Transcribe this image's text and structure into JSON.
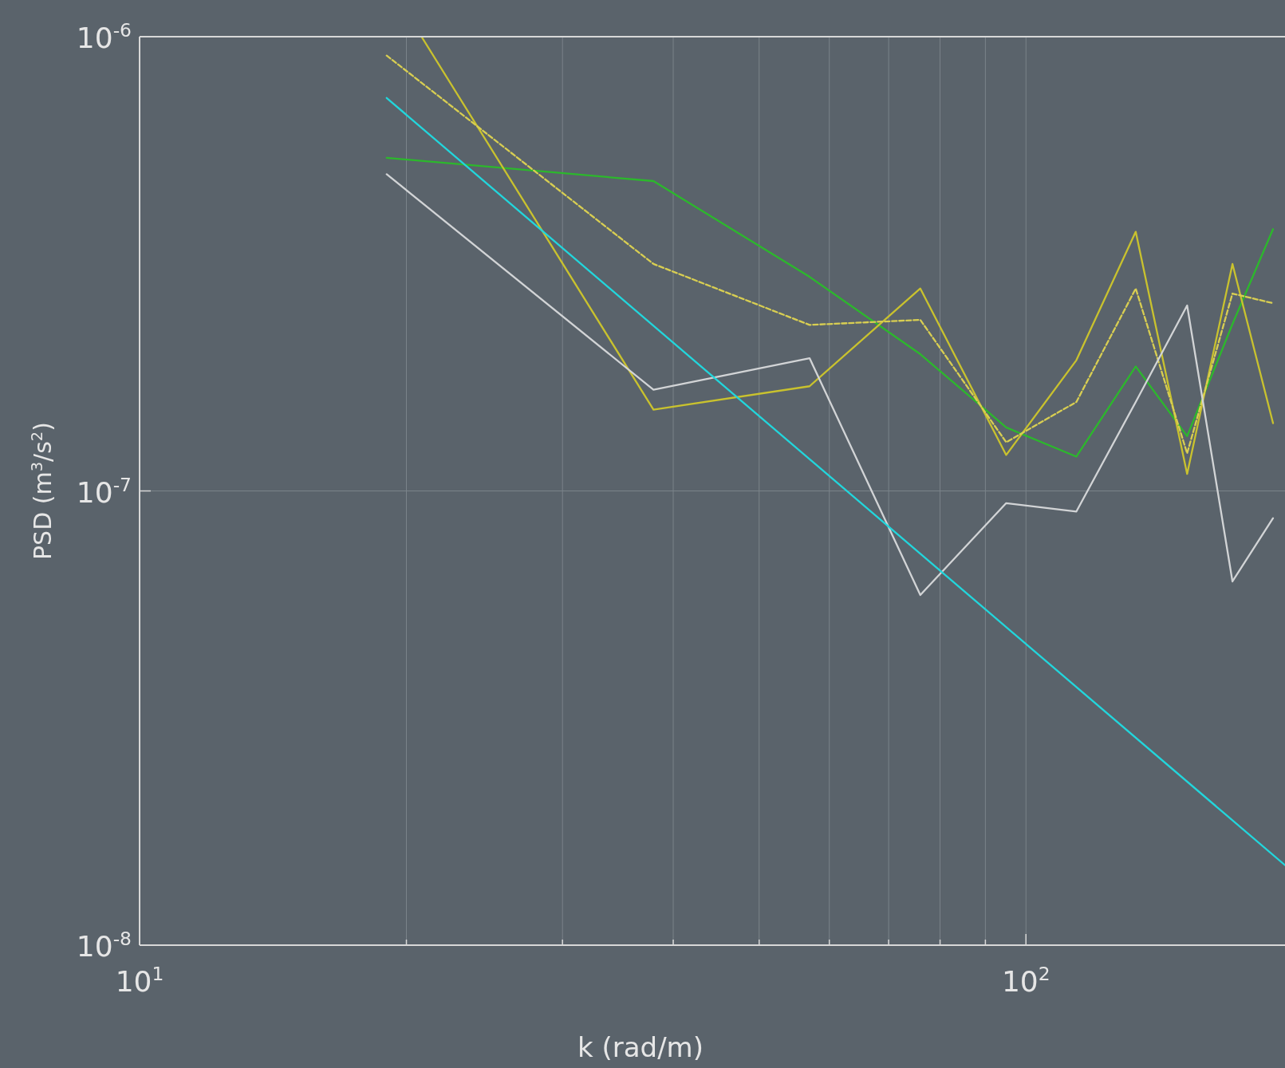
{
  "chart_data": {
    "type": "line",
    "xlabel": "k (rad/m)",
    "ylabel": "PSD (m$^{3}$/s$^{2}$)",
    "log": "xy",
    "grid": true,
    "x": [
      19,
      38,
      57,
      76,
      95,
      114,
      133,
      152,
      171,
      190
    ],
    "xlim": [
      10,
      196
    ],
    "ylim": [
      1e-08,
      1e-06
    ],
    "xticks": [
      {
        "value": 10,
        "label": "10$^{1}$"
      },
      {
        "value": 20,
        "label": null
      },
      {
        "value": 30,
        "label": null
      },
      {
        "value": 40,
        "label": null
      },
      {
        "value": 50,
        "label": null
      },
      {
        "value": 60,
        "label": null
      },
      {
        "value": 70,
        "label": null
      },
      {
        "value": 80,
        "label": null
      },
      {
        "value": 90,
        "label": null
      },
      {
        "value": 100,
        "label": "10$^{2}$"
      }
    ],
    "yticks": [
      {
        "value": 1e-08,
        "label": "10$^{-8}$"
      },
      {
        "value": 1e-07,
        "label": "10$^{-7}$"
      },
      {
        "value": 1e-06,
        "label": "10$^{-6}$"
      }
    ],
    "series": [
      {
        "color": "#2cb82c",
        "line_style": "solid",
        "values": [
          5.41e-07,
          4.81e-07,
          2.96e-07,
          2e-07,
          1.38e-07,
          1.19e-07,
          1.88e-07,
          1.32e-07,
          2.33e-07,
          3.77e-07
        ]
      },
      {
        "color": "#c9c22e",
        "line_style": "solid",
        "x": [
          20.8,
          38,
          57,
          76,
          95,
          114,
          133,
          152,
          171,
          190
        ],
        "values": [
          1e-06,
          1.51e-07,
          1.7e-07,
          2.79e-07,
          1.2e-07,
          1.94e-07,
          3.72e-07,
          1.09e-07,
          3.16e-07,
          1.41e-07
        ]
      },
      {
        "color": "#d8ce52",
        "line_style": "dashed",
        "values": [
          9.09e-07,
          3.16e-07,
          2.32e-07,
          2.38e-07,
          1.28e-07,
          1.57e-07,
          2.79e-07,
          1.21e-07,
          2.72e-07,
          2.59e-07
        ]
      },
      {
        "color": "#d2d4d6",
        "line_style": "solid",
        "values": [
          4.98e-07,
          1.67e-07,
          1.96e-07,
          5.9e-08,
          9.4e-08,
          9.01e-08,
          1.57e-07,
          2.56e-07,
          6.32e-08,
          8.71e-08
        ]
      },
      {
        "color": "#22d6dc",
        "line_style": "solid",
        "x": [
          19,
          196
        ],
        "values": [
          7.33e-07,
          1.5e-08
        ]
      }
    ]
  }
}
